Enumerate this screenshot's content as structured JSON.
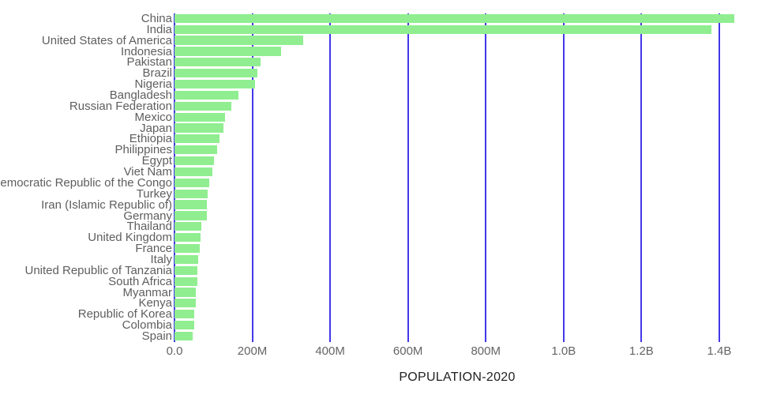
{
  "chart_data": {
    "type": "bar",
    "orientation": "horizontal",
    "title": "",
    "xlabel": "POPULATION-2020",
    "ylabel": "",
    "grid": true,
    "legend": false,
    "units": "people",
    "categories": [
      "China",
      "India",
      "United States of America",
      "Indonesia",
      "Pakistan",
      "Brazil",
      "Nigeria",
      "Bangladesh",
      "Russian Federation",
      "Mexico",
      "Japan",
      "Ethiopia",
      "Philippines",
      "Egypt",
      "Viet Nam",
      "Democratic Republic of the Congo",
      "Turkey",
      "Iran (Islamic Republic of)",
      "Germany",
      "Thailand",
      "United Kingdom",
      "France",
      "Italy",
      "United Republic of Tanzania",
      "South Africa",
      "Myanmar",
      "Kenya",
      "Republic of Korea",
      "Colombia",
      "Spain"
    ],
    "values_millions": [
      1439.3,
      1380.0,
      331.0,
      273.5,
      220.9,
      212.6,
      206.1,
      164.7,
      145.9,
      128.9,
      126.5,
      115.0,
      109.6,
      102.3,
      97.3,
      89.6,
      84.3,
      84.0,
      83.8,
      69.8,
      67.9,
      65.3,
      60.5,
      59.7,
      59.3,
      54.4,
      53.8,
      51.3,
      50.9,
      46.8
    ],
    "x_ticks": [
      {
        "label": "0.0",
        "value_millions": 0
      },
      {
        "label": "200M",
        "value_millions": 200
      },
      {
        "label": "400M",
        "value_millions": 400
      },
      {
        "label": "600M",
        "value_millions": 600
      },
      {
        "label": "800M",
        "value_millions": 800
      },
      {
        "label": "1.0B",
        "value_millions": 1000
      },
      {
        "label": "1.2B",
        "value_millions": 1200
      },
      {
        "label": "1.4B",
        "value_millions": 1400
      }
    ],
    "xlim_millions": [
      0,
      1450
    ],
    "colors": {
      "bar": "#90EE90",
      "gridline": "#4338e8",
      "tick_label": "#646464",
      "category_label": "#5e5e5e",
      "axis_title": "#1f1f1f",
      "background": "#ffffff"
    }
  }
}
